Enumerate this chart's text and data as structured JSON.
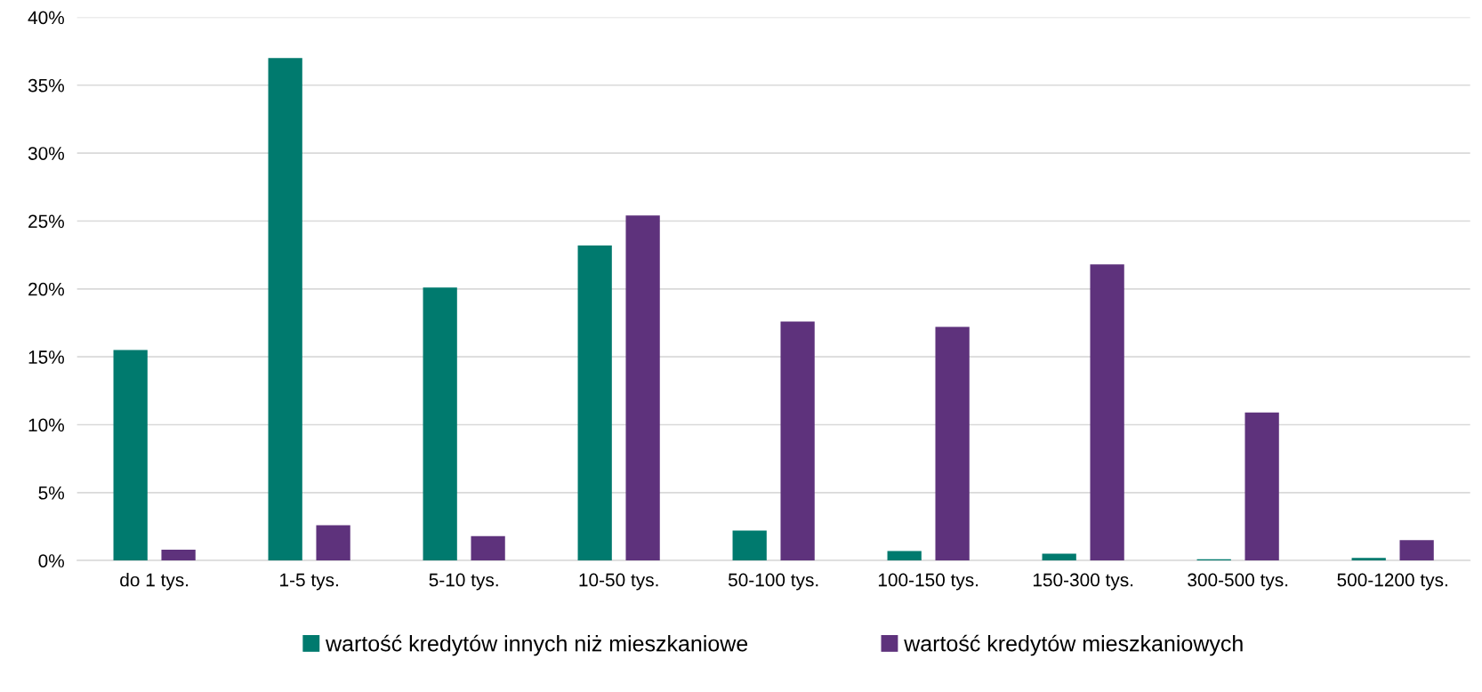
{
  "chart_data": {
    "type": "bar",
    "categories": [
      "do 1 tys.",
      "1-5 tys.",
      "5-10 tys.",
      "10-50 tys.",
      "50-100 tys.",
      "100-150 tys.",
      "150-300 tys.",
      "300-500 tys.",
      "500-1200 tys."
    ],
    "series": [
      {
        "name": "wartość kredytów innych niż mieszkaniowe",
        "color": "#007a6e",
        "values": [
          15.5,
          37.0,
          20.1,
          23.2,
          2.2,
          0.7,
          0.5,
          0.1,
          0.2
        ]
      },
      {
        "name": "wartość kredytów mieszkaniowych",
        "color": "#5e327c",
        "values": [
          0.8,
          2.6,
          1.8,
          25.4,
          17.6,
          17.2,
          21.8,
          10.9,
          1.5
        ]
      }
    ],
    "ylim": [
      0,
      40
    ],
    "yticks": [
      {
        "value": 0,
        "label": "0%"
      },
      {
        "value": 5,
        "label": "5%"
      },
      {
        "value": 10,
        "label": "10%"
      },
      {
        "value": 15,
        "label": "15%"
      },
      {
        "value": 20,
        "label": "20%"
      },
      {
        "value": 25,
        "label": "25%"
      },
      {
        "value": 30,
        "label": "30%"
      },
      {
        "value": 35,
        "label": "35%"
      },
      {
        "value": 40,
        "label": "40%"
      }
    ],
    "grid": "y",
    "legend": "bottom"
  }
}
